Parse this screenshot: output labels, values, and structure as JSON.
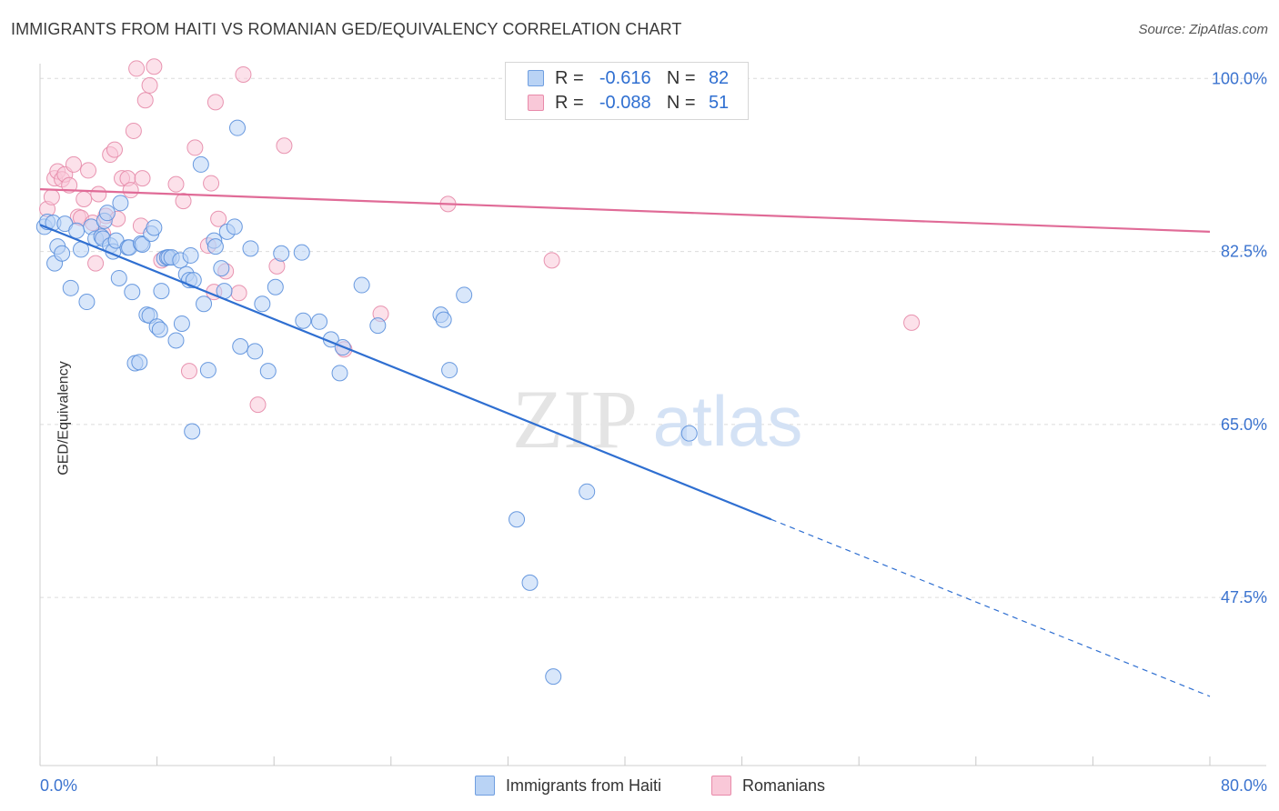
{
  "title": "IMMIGRANTS FROM HAITI VS ROMANIAN GED/EQUIVALENCY CORRELATION CHART",
  "source": "Source: ZipAtlas.com",
  "watermark": {
    "zip": "ZIP",
    "atlas": "atlas"
  },
  "legend": {
    "r_label": "R =",
    "n_label": "N =",
    "blue": {
      "r": "-0.616",
      "n": "82"
    },
    "pink": {
      "r": "-0.088",
      "n": "51"
    }
  },
  "colors": {
    "blue": "#5a8fdc",
    "blue_fill": "#b9d3f5",
    "blue_line": "#2f6fd1",
    "pink": "#e58aa8",
    "pink_fill": "#f9c8d8",
    "pink_line": "#e06b97"
  },
  "chart_data": {
    "type": "scatter",
    "title": "IMMIGRANTS FROM HAITI VS ROMANIAN GED/EQUIVALENCY CORRELATION CHART",
    "xlabel": "",
    "ylabel": "GED/Equivalency",
    "xlim": [
      0,
      80
    ],
    "ylim": [
      30.5,
      101.5
    ],
    "x_tick_labels": [
      "0.0%",
      "80.0%"
    ],
    "y_ticks": [
      47.5,
      65.0,
      82.5,
      100.0
    ],
    "y_tick_labels": [
      "47.5%",
      "65.0%",
      "82.5%",
      "100.0%"
    ],
    "grid": true,
    "legend_position": "top-center",
    "series": [
      {
        "name": "Immigrants from Haiti",
        "color": "#5a8fdc",
        "trend": {
          "x": [
            0,
            50,
            80
          ],
          "y": [
            85.2,
            55.4,
            37.5
          ],
          "solid_until": 50
        },
        "points": [
          [
            0.3,
            85.0
          ],
          [
            0.5,
            85.5
          ],
          [
            0.9,
            85.4
          ],
          [
            1.0,
            81.3
          ],
          [
            1.2,
            83.0
          ],
          [
            1.5,
            82.3
          ],
          [
            1.7,
            85.3
          ],
          [
            2.1,
            78.8
          ],
          [
            2.5,
            84.6
          ],
          [
            2.8,
            82.7
          ],
          [
            3.2,
            77.4
          ],
          [
            3.5,
            85.0
          ],
          [
            3.8,
            83.8
          ],
          [
            4.2,
            84.0
          ],
          [
            4.3,
            83.8
          ],
          [
            4.4,
            85.6
          ],
          [
            4.6,
            86.4
          ],
          [
            4.8,
            83.1
          ],
          [
            5.0,
            82.5
          ],
          [
            5.2,
            83.6
          ],
          [
            5.4,
            79.8
          ],
          [
            5.5,
            87.4
          ],
          [
            6.0,
            82.9
          ],
          [
            6.1,
            82.9
          ],
          [
            6.3,
            78.4
          ],
          [
            6.5,
            71.2
          ],
          [
            6.8,
            71.3
          ],
          [
            6.9,
            83.3
          ],
          [
            7.0,
            83.2
          ],
          [
            7.3,
            76.1
          ],
          [
            7.5,
            76.0
          ],
          [
            7.6,
            84.3
          ],
          [
            7.8,
            84.9
          ],
          [
            8.0,
            74.9
          ],
          [
            8.2,
            74.6
          ],
          [
            8.3,
            78.5
          ],
          [
            8.5,
            81.8
          ],
          [
            8.7,
            81.9
          ],
          [
            8.8,
            81.9
          ],
          [
            9.0,
            81.9
          ],
          [
            9.3,
            73.5
          ],
          [
            9.6,
            81.6
          ],
          [
            9.7,
            75.2
          ],
          [
            10.0,
            80.2
          ],
          [
            10.2,
            79.6
          ],
          [
            10.3,
            82.1
          ],
          [
            10.4,
            64.3
          ],
          [
            10.5,
            79.6
          ],
          [
            11.0,
            91.3
          ],
          [
            11.2,
            77.2
          ],
          [
            11.5,
            70.5
          ],
          [
            11.9,
            83.6
          ],
          [
            12.0,
            83.0
          ],
          [
            12.4,
            80.8
          ],
          [
            12.6,
            78.5
          ],
          [
            12.8,
            84.5
          ],
          [
            13.3,
            85.0
          ],
          [
            13.5,
            95.0
          ],
          [
            13.7,
            72.9
          ],
          [
            14.4,
            82.8
          ],
          [
            14.7,
            72.4
          ],
          [
            15.2,
            77.2
          ],
          [
            15.6,
            70.4
          ],
          [
            16.1,
            78.9
          ],
          [
            16.5,
            82.3
          ],
          [
            17.9,
            82.4
          ],
          [
            18.0,
            75.5
          ],
          [
            19.1,
            75.4
          ],
          [
            19.9,
            73.6
          ],
          [
            20.5,
            70.2
          ],
          [
            20.7,
            72.8
          ],
          [
            22.0,
            79.1
          ],
          [
            23.1,
            75.0
          ],
          [
            27.4,
            76.1
          ],
          [
            27.6,
            75.6
          ],
          [
            28.0,
            70.5
          ],
          [
            29.0,
            78.1
          ],
          [
            32.6,
            55.4
          ],
          [
            33.5,
            49.0
          ],
          [
            35.1,
            39.5
          ],
          [
            37.4,
            58.2
          ],
          [
            44.4,
            64.1
          ]
        ]
      },
      {
        "name": "Romanians",
        "color": "#e58aa8",
        "trend": {
          "x": [
            0,
            80
          ],
          "y": [
            88.8,
            84.5
          ],
          "solid_until": 80
        },
        "points": [
          [
            0.5,
            86.8
          ],
          [
            0.8,
            88.0
          ],
          [
            1.0,
            89.9
          ],
          [
            1.2,
            90.6
          ],
          [
            1.5,
            89.8
          ],
          [
            1.7,
            90.3
          ],
          [
            2.0,
            89.2
          ],
          [
            2.3,
            91.3
          ],
          [
            2.6,
            86.0
          ],
          [
            2.8,
            85.9
          ],
          [
            3.0,
            87.8
          ],
          [
            3.3,
            90.7
          ],
          [
            3.6,
            85.4
          ],
          [
            3.8,
            81.3
          ],
          [
            4.0,
            88.3
          ],
          [
            4.3,
            84.3
          ],
          [
            4.5,
            86.1
          ],
          [
            4.8,
            92.3
          ],
          [
            5.1,
            92.8
          ],
          [
            5.3,
            85.8
          ],
          [
            5.6,
            89.9
          ],
          [
            6.0,
            89.9
          ],
          [
            6.2,
            88.7
          ],
          [
            6.4,
            94.7
          ],
          [
            6.6,
            101.0
          ],
          [
            6.9,
            85.1
          ],
          [
            7.0,
            89.9
          ],
          [
            7.2,
            97.8
          ],
          [
            7.5,
            99.3
          ],
          [
            7.8,
            101.2
          ],
          [
            8.3,
            81.6
          ],
          [
            9.3,
            89.3
          ],
          [
            9.8,
            87.6
          ],
          [
            10.2,
            70.4
          ],
          [
            10.6,
            93.0
          ],
          [
            11.5,
            83.1
          ],
          [
            11.7,
            89.4
          ],
          [
            11.9,
            78.4
          ],
          [
            12.0,
            97.6
          ],
          [
            12.2,
            85.8
          ],
          [
            12.7,
            80.5
          ],
          [
            13.6,
            78.3
          ],
          [
            13.9,
            100.4
          ],
          [
            14.9,
            67.0
          ],
          [
            16.2,
            81.0
          ],
          [
            16.7,
            93.2
          ],
          [
            20.8,
            72.6
          ],
          [
            23.3,
            76.2
          ],
          [
            27.9,
            87.3
          ],
          [
            35.0,
            81.6
          ],
          [
            59.6,
            75.3
          ]
        ]
      }
    ]
  },
  "bottom_legend": {
    "blue_label": "Immigrants from Haiti",
    "pink_label": "Romanians"
  }
}
